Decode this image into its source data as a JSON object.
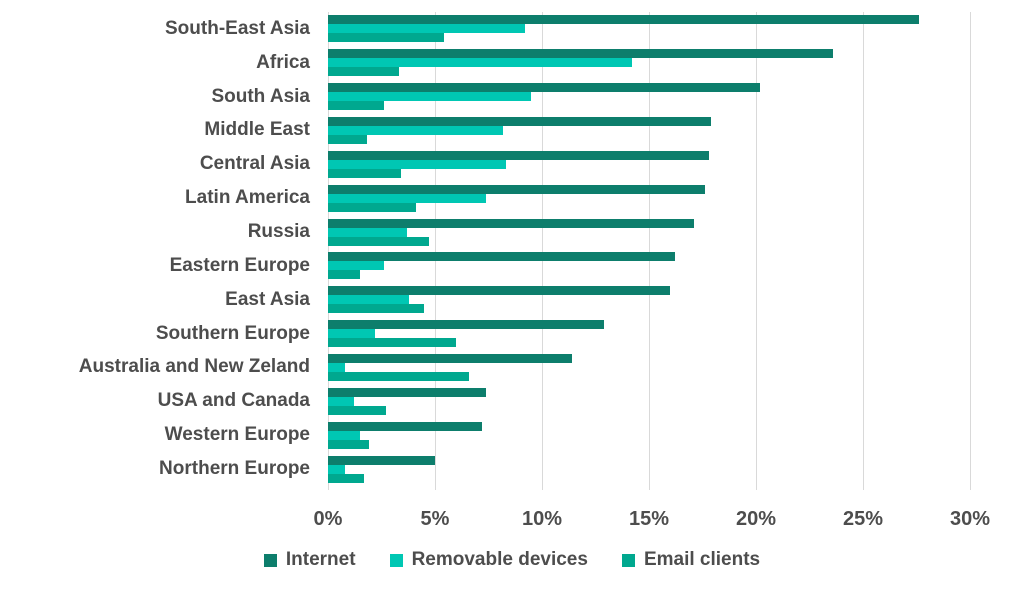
{
  "chart_data": {
    "type": "bar",
    "orientation": "horizontal",
    "title": "",
    "xlabel": "",
    "ylabel": "",
    "xlim": [
      0,
      30
    ],
    "x_ticks": [
      "0%",
      "5%",
      "10%",
      "15%",
      "20%",
      "25%",
      "30%"
    ],
    "grid": true,
    "legend_position": "bottom",
    "categories": [
      "South-East Asia",
      "Africa",
      "South Asia",
      "Middle East",
      "Central Asia",
      "Latin America",
      "Russia",
      "Eastern Europe",
      "East Asia",
      "Southern Europe",
      "Australia and New Zeland",
      "USA and Canada",
      "Western Europe",
      "Northern Europe"
    ],
    "series": [
      {
        "name": "Internet",
        "color": "#0D7E6C",
        "values": [
          27.6,
          23.6,
          20.2,
          17.9,
          17.8,
          17.6,
          17.1,
          16.2,
          16.0,
          12.9,
          11.4,
          7.4,
          7.2,
          5.0
        ]
      },
      {
        "name": "Removable devices",
        "color": "#00C7B3",
        "values": [
          9.2,
          14.2,
          9.5,
          8.2,
          8.3,
          7.4,
          3.7,
          2.6,
          3.8,
          2.2,
          0.8,
          1.2,
          1.5,
          0.8
        ]
      },
      {
        "name": "Email clients",
        "color": "#00A88F",
        "values": [
          5.4,
          3.3,
          2.6,
          1.8,
          3.4,
          4.1,
          4.7,
          1.5,
          4.5,
          6.0,
          6.6,
          2.7,
          1.9,
          1.7
        ]
      }
    ]
  },
  "colors": {
    "background": "#FFFFFF",
    "gridline": "#D9D9D9",
    "text": "#4D4D4D"
  }
}
